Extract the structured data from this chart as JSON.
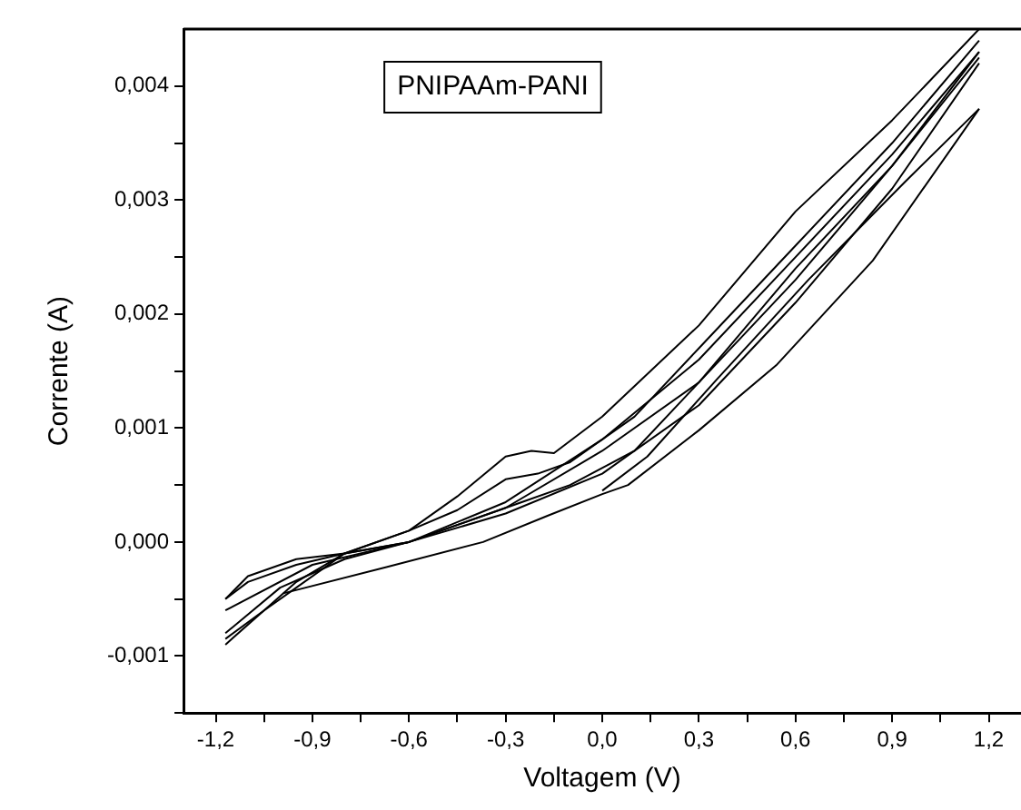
{
  "chart_data": {
    "type": "line",
    "xlabel": "Voltagem (V)",
    "ylabel": "Corrente (A)",
    "annotations": [
      "PNIPAAm-PANI"
    ],
    "xlim": [
      -1.3,
      1.3
    ],
    "ylim": [
      -0.0015,
      0.0045
    ],
    "xticks": [
      {
        "value": -1.2,
        "label": "-1,2"
      },
      {
        "value": -1.05,
        "label": null
      },
      {
        "value": -0.9,
        "label": "-0,9"
      },
      {
        "value": -0.75,
        "label": null
      },
      {
        "value": -0.6,
        "label": "-0,6"
      },
      {
        "value": -0.45,
        "label": null
      },
      {
        "value": -0.3,
        "label": "-0,3"
      },
      {
        "value": -0.15,
        "label": null
      },
      {
        "value": 0,
        "label": "0,0"
      },
      {
        "value": 0.15,
        "label": null
      },
      {
        "value": 0.3,
        "label": "0,3"
      },
      {
        "value": 0.45,
        "label": null
      },
      {
        "value": 0.6,
        "label": "0,6"
      },
      {
        "value": 0.75,
        "label": null
      },
      {
        "value": 0.9,
        "label": "0,9"
      },
      {
        "value": 1.05,
        "label": null
      },
      {
        "value": 1.2,
        "label": "1,2"
      }
    ],
    "yticks": [
      {
        "value": -0.0015,
        "label": null
      },
      {
        "value": -0.001,
        "label": "-0,001"
      },
      {
        "value": -0.0005,
        "label": null
      },
      {
        "value": 0,
        "label": "0,000"
      },
      {
        "value": 0.0005,
        "label": null
      },
      {
        "value": 0.001,
        "label": "0,001"
      },
      {
        "value": 0.0015,
        "label": null
      },
      {
        "value": 0.002,
        "label": "0,002"
      },
      {
        "value": 0.0025,
        "label": null
      },
      {
        "value": 0.003,
        "label": "0,003"
      },
      {
        "value": 0.0035,
        "label": null
      },
      {
        "value": 0.004,
        "label": "0,004"
      }
    ],
    "grid": false,
    "legend": false,
    "marker": "none",
    "line_style": "solid",
    "series": [
      {
        "color": "#000000",
        "x": [
          -0.99,
          -0.67,
          -0.37,
          -0.17,
          0,
          0.08,
          0.3,
          0.54,
          0.84,
          1.17
        ],
        "values": [
          -0.00045,
          -0.00022,
          0.0,
          0.00023,
          0.00042,
          0.0005,
          0.00098,
          0.00155,
          0.00247,
          0.0038
        ]
      },
      {
        "color": "#000000",
        "x": [
          0,
          0.14,
          0.36,
          0.64,
          0.94,
          1.17
        ],
        "values": [
          0.00045,
          0.00075,
          0.00144,
          0.0023,
          0.00316,
          0.0038
        ]
      },
      {
        "color": "#000000",
        "x": [
          -1.17,
          -1.0,
          -0.8,
          -0.6,
          -0.4,
          -0.25,
          -0.1,
          0.1,
          0.3,
          0.6,
          0.9,
          1.17
        ],
        "values": [
          -0.0008,
          -0.0004,
          -0.00015,
          0.0,
          0.0002,
          0.00035,
          0.0005,
          0.0008,
          0.0014,
          0.0024,
          0.0033,
          0.0043
        ]
      },
      {
        "color": "#000000",
        "x": [
          -1.17,
          -0.9,
          -0.6,
          -0.3,
          0,
          0.3,
          0.6,
          0.9,
          1.17
        ],
        "values": [
          -0.0006,
          -0.0002,
          0.0,
          0.00025,
          0.0006,
          0.0012,
          0.0021,
          0.0031,
          0.0042
        ]
      },
      {
        "color": "#000000",
        "x": [
          -1.17,
          -1.05,
          -0.95,
          -0.8,
          -0.6,
          -0.45,
          -0.3,
          -0.2,
          -0.1,
          0.1,
          0.3,
          0.6,
          0.9,
          1.17
        ],
        "values": [
          -0.00085,
          -0.0006,
          -0.0004,
          -0.0001,
          0.0001,
          0.00028,
          0.00055,
          0.0006,
          0.0007,
          0.0011,
          0.0017,
          0.0026,
          0.0035,
          0.0044
        ]
      },
      {
        "color": "#000000",
        "x": [
          -1.17,
          -1.1,
          -0.95,
          -0.8,
          -0.6,
          -0.3,
          0,
          0.3,
          0.6,
          0.9,
          1.17
        ],
        "values": [
          -0.0005,
          -0.00035,
          -0.0002,
          -0.0001,
          0.0,
          0.0003,
          0.0008,
          0.0014,
          0.0023,
          0.0033,
          0.00425
        ]
      },
      {
        "color": "#000000",
        "x": [
          -1.17,
          -1.05,
          -0.95,
          -0.8,
          -0.6,
          -0.45,
          -0.3,
          -0.22,
          -0.15,
          0,
          0.3,
          0.6,
          0.9,
          1.17
        ],
        "values": [
          -0.0009,
          -0.0006,
          -0.00035,
          -0.0001,
          0.0001,
          0.0004,
          0.00075,
          0.0008,
          0.00078,
          0.0011,
          0.0019,
          0.0029,
          0.0037,
          0.0045
        ]
      },
      {
        "color": "#000000",
        "x": [
          -1.17,
          -1.1,
          -0.95,
          -0.8,
          -0.6,
          -0.3,
          0,
          0.3,
          0.6,
          0.9,
          1.17
        ],
        "values": [
          -0.0005,
          -0.0003,
          -0.00015,
          -0.0001,
          0.0,
          0.00035,
          0.0009,
          0.0016,
          0.0025,
          0.0034,
          0.0043
        ]
      }
    ]
  }
}
